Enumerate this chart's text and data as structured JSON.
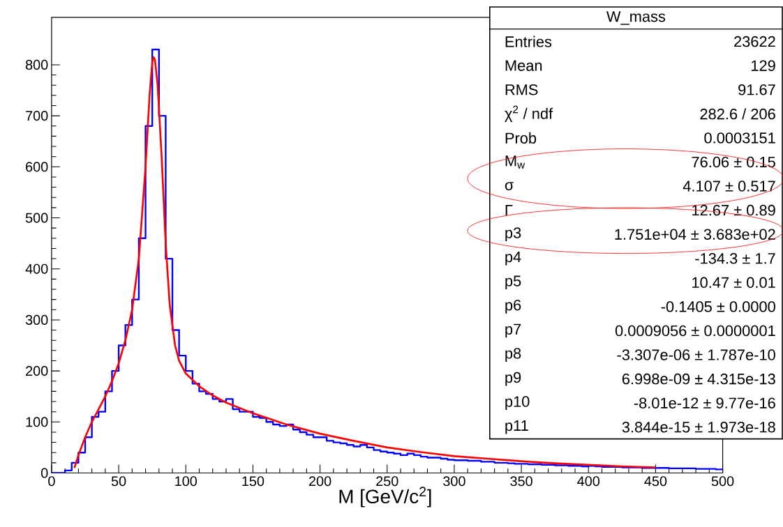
{
  "chart_data": {
    "type": "histogram",
    "xlabel": "M [GeV/c$^{2}$]",
    "xlim": [
      0,
      500
    ],
    "ylim": [
      0,
      893
    ],
    "xticks": [
      0,
      50,
      100,
      150,
      200,
      250,
      300,
      350,
      400,
      450,
      500
    ],
    "yticks": [
      0,
      100,
      200,
      300,
      400,
      500,
      600,
      700,
      800
    ],
    "bins": [
      0,
      5,
      10,
      15,
      20,
      25,
      30,
      35,
      40,
      45,
      50,
      55,
      60,
      65,
      70,
      75,
      80,
      85,
      90,
      95,
      100,
      105,
      110,
      115,
      120,
      125,
      130,
      135,
      140,
      145,
      150,
      155,
      160,
      165,
      170,
      175,
      180,
      185,
      190,
      195,
      200,
      205,
      210,
      215,
      220,
      225,
      230,
      235,
      240,
      245,
      250,
      255,
      260,
      265,
      270,
      275,
      280,
      285,
      290,
      295,
      300,
      305,
      310,
      315,
      320,
      325,
      330,
      335,
      340,
      345,
      350,
      355,
      360,
      365,
      370,
      375,
      380,
      385,
      390,
      395,
      400,
      405,
      410,
      415,
      420,
      425,
      430,
      435,
      440,
      445,
      450,
      455,
      460,
      465,
      470,
      475,
      480,
      485,
      490,
      495,
      500
    ],
    "series": [
      {
        "type": "histogram",
        "color": "#0000ff",
        "values": [
          0,
          0,
          5,
          20,
          40,
          70,
          110,
          120,
          160,
          200,
          250,
          290,
          340,
          460,
          680,
          830,
          700,
          420,
          280,
          230,
          200,
          175,
          160,
          155,
          145,
          140,
          145,
          125,
          120,
          120,
          110,
          108,
          100,
          95,
          92,
          95,
          85,
          80,
          75,
          70,
          70,
          63,
          60,
          58,
          55,
          52,
          55,
          50,
          45,
          42,
          40,
          38,
          35,
          38,
          35,
          32,
          30,
          30,
          28,
          26,
          25,
          25,
          24,
          24,
          22,
          22,
          20,
          20,
          19,
          18,
          18,
          17,
          17,
          16,
          16,
          15,
          15,
          14,
          14,
          13,
          14,
          13,
          12,
          12,
          12,
          11,
          11,
          11,
          10,
          10,
          10,
          10,
          9,
          9,
          9,
          9,
          8,
          8,
          8,
          7
        ]
      },
      {
        "type": "line",
        "color": "#ff0000",
        "x": [
          17,
          20,
          25,
          30,
          35,
          40,
          45,
          50,
          55,
          60,
          65,
          70,
          73,
          75,
          76,
          77,
          79,
          82,
          85,
          88,
          92,
          95,
          100,
          110,
          120,
          130,
          150,
          175,
          200,
          225,
          250,
          275,
          300,
          325,
          350,
          375,
          400,
          425,
          450
        ],
        "values": [
          10,
          35,
          70,
          100,
          125,
          150,
          180,
          215,
          260,
          320,
          420,
          600,
          740,
          805,
          815,
          810,
          760,
          620,
          450,
          330,
          250,
          220,
          195,
          170,
          152,
          138,
          117,
          95,
          77,
          63,
          50,
          41,
          33,
          28,
          23,
          19,
          16,
          13,
          11
        ]
      }
    ],
    "annotations": [
      "W_mass",
      "Entries",
      "23622",
      "Mean",
      "129",
      "RMS",
      "91.67",
      "χ$^{2}$ / ndf",
      "282.6 / 206",
      "Prob",
      "0.0003151",
      "M$_{w}$",
      "76.06 ± 0.15",
      "σ",
      "4.107 ± 0.517",
      "Γ",
      "12.67 ± 0.89",
      "p3",
      "1.751e+04 ± 3.683e+02",
      "p4",
      "-134.3 ± 1.7",
      "p5",
      "10.47 ± 0.01",
      "p6",
      "-0.1405 ± 0.0000",
      "p7",
      "0.0009056 ± 0.0000001",
      "p8",
      "-3.307e-06 ± 1.787e-10",
      "p9",
      "6.998e-09 ± 4.315e-13",
      "p10",
      "-8.01e-12 ± 9.77e-16",
      "p11",
      "3.844e-15 ± 1.973e-18"
    ]
  }
}
